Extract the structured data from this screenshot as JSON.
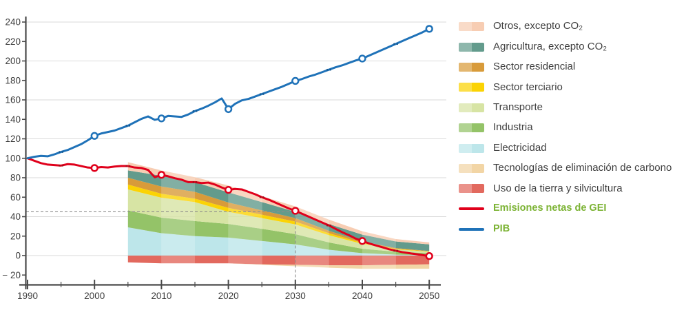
{
  "chart_data": {
    "type": "area",
    "title": "",
    "xlabel": "",
    "ylabel": "",
    "x_range": [
      1990,
      2050
    ],
    "ylim": [
      -20,
      240
    ],
    "grid": "horizontal, every 40 units",
    "legend_position": "right",
    "x_tick_labels": [
      "1990",
      "2000",
      "2010",
      "2020",
      "2030",
      "2040",
      "2050"
    ],
    "x_minor_ticks": [
      1995,
      2005,
      2015,
      2025,
      2035,
      2045
    ],
    "y_ticks": [
      {
        "v": 240,
        "label": "240"
      },
      {
        "v": 220,
        "label": "220"
      },
      {
        "v": 200,
        "label": "200"
      },
      {
        "v": 180,
        "label": "180"
      },
      {
        "v": 160,
        "label": "160"
      },
      {
        "v": 140,
        "label": "140"
      },
      {
        "v": 120,
        "label": "120"
      },
      {
        "v": 100,
        "label": "100"
      },
      {
        "v": 80,
        "label": "80"
      },
      {
        "v": 60,
        "label": "60"
      },
      {
        "v": 40,
        "label": "40"
      },
      {
        "v": 20,
        "label": "20"
      },
      {
        "v": 0,
        "label": "0"
      },
      {
        "v": -20,
        "label": "− 20"
      }
    ],
    "y_gridlines": [
      0,
      40,
      80,
      120,
      160,
      200,
      240
    ],
    "annotations": {
      "dashed_target_value": 45,
      "dashed_target_year": 2030
    },
    "index_base": "1990 = 100",
    "line_years_start": 1990,
    "series": [
      {
        "name": "PIB",
        "color": "#1f72b8",
        "dot_color": "#12568f",
        "marker_years": [
          2000,
          2010,
          2020,
          2030,
          2040,
          2050
        ],
        "dot_years": [
          1995,
          2005,
          2015,
          2025,
          2035,
          2045
        ],
        "values": [
          100,
          101.5,
          102.5,
          102,
          104,
          106.5,
          108.5,
          111.5,
          114.5,
          118.5,
          123,
          125.5,
          127,
          128.5,
          131,
          133.5,
          137,
          140.5,
          143,
          139.5,
          141,
          143.5,
          143,
          142.5,
          145,
          148.5,
          151,
          154,
          157.5,
          161.5,
          150.5,
          156,
          159.5,
          161,
          163.5,
          166,
          168.5,
          171,
          173.5,
          176.5,
          179.5,
          181.5,
          184,
          186,
          188.5,
          191,
          193.5,
          195.5,
          198,
          200.5,
          202.5,
          205.5,
          208.5,
          211.5,
          214.5,
          217.5,
          220.5,
          223.5,
          226.5,
          229.5,
          233
        ]
      },
      {
        "name": "Emisiones netas de GEI",
        "color": "#e0001b",
        "dot_color": "#9e0f18",
        "marker_years": [
          2000,
          2010,
          2020,
          2030,
          2040,
          2050
        ],
        "dot_years": [
          1995,
          2005,
          2015,
          2025,
          2035,
          2045
        ],
        "values": [
          100,
          97.5,
          95,
          93.5,
          93,
          92.5,
          94,
          93.5,
          92,
          90.5,
          90,
          91,
          90.5,
          91.5,
          92,
          92,
          90.5,
          90,
          88,
          80.5,
          83,
          81.5,
          79.5,
          78,
          75.5,
          75.5,
          74.5,
          75,
          73,
          70,
          67.5,
          68.5,
          68,
          65.5,
          63,
          60,
          57.5,
          54.5,
          51.5,
          48.5,
          46,
          43,
          40,
          37,
          34,
          31,
          27.5,
          24,
          21,
          17.5,
          15,
          12.5,
          10.5,
          8.5,
          6.5,
          5,
          3.5,
          2.5,
          1.5,
          0.5,
          -0.5
        ]
      }
    ],
    "area_years": [
      2005,
      2010,
      2015,
      2020,
      2025,
      2030,
      2035,
      2040,
      2045,
      2050
    ],
    "area_series_bottom_to_top": [
      {
        "name": "Electricidad",
        "color": "#bde6ea",
        "values": [
          29,
          23,
          20,
          18.5,
          15,
          11.5,
          6,
          2.5,
          1,
          0.5
        ]
      },
      {
        "name": "Industria",
        "color": "#94c368",
        "values": [
          17.5,
          16,
          15.5,
          14,
          12.5,
          10.5,
          7.5,
          4.5,
          3,
          2
        ]
      },
      {
        "name": "Transporte",
        "color": "#d7e4a4",
        "values": [
          21.5,
          20.5,
          19.5,
          12.5,
          11,
          10,
          7.5,
          5,
          2.5,
          1.5
        ]
      },
      {
        "name": "Sector terciario",
        "color": "#fbd304",
        "values": [
          5,
          4,
          3.5,
          4,
          3.5,
          3,
          2,
          1,
          0.5,
          0.3
        ]
      },
      {
        "name": "Sector residencial",
        "color": "#d89b3a",
        "values": [
          7,
          7.5,
          7,
          5.5,
          4.5,
          3.5,
          2.5,
          1.5,
          0.7,
          0.4
        ]
      },
      {
        "name": "Agricultura, excepto CO₂",
        "color": "#639b8c",
        "values": [
          7.5,
          11,
          10,
          10.5,
          8.5,
          6.5,
          7,
          7,
          6.8,
          6.8
        ]
      },
      {
        "name": "Otros, excepto CO₂",
        "color": "#f7cdb3",
        "values": [
          8.5,
          5.5,
          5,
          7,
          6,
          5.5,
          4.5,
          3.5,
          2.5,
          2
        ]
      }
    ],
    "negative_area_series_top_to_bottom": [
      {
        "name": "Uso de la tierra y silvicultura",
        "color": "#e2695e",
        "values": [
          -7,
          -8,
          -8,
          -8,
          -9,
          -9.5,
          -10,
          -10,
          -9.5,
          -9
        ]
      },
      {
        "name": "Tecnologías de eliminación de carbono",
        "color": "#f2d5a5",
        "values": [
          0,
          0,
          0,
          0,
          -0.5,
          -1.5,
          -2.5,
          -3.5,
          -4,
          -4.5
        ]
      }
    ],
    "legend": {
      "items": [
        {
          "label": "Otros, excepto CO₂",
          "color": "#f7cdb3",
          "type": "area"
        },
        {
          "label": "Agricultura, excepto CO₂",
          "color": "#639b8c",
          "type": "area"
        },
        {
          "label": "Sector residencial",
          "color": "#d89b3a",
          "type": "area"
        },
        {
          "label": "Sector terciario",
          "color": "#fbd304",
          "type": "area"
        },
        {
          "label": "Transporte",
          "color": "#d7e4a4",
          "type": "area"
        },
        {
          "label": "Industria",
          "color": "#94c368",
          "type": "area"
        },
        {
          "label": "Electricidad",
          "color": "#bde6ea",
          "type": "area"
        },
        {
          "label": "Tecnologías de eliminación de carbono",
          "color": "#f2d5a5",
          "type": "area"
        },
        {
          "label": "Uso de la tierra y silvicultura",
          "color": "#e2695e",
          "type": "area"
        },
        {
          "label": "Emisiones netas de GEI",
          "color": "#e0001b",
          "type": "line"
        },
        {
          "label": "PIB",
          "color": "#1f72b8",
          "type": "line"
        }
      ]
    },
    "colors": {
      "grid": "#dadada",
      "axis": "#4a4a4a",
      "dashed_guide": "#8c8c8c",
      "legend_text": "#3f3f3f",
      "legend_text_green": "#7cb334"
    }
  }
}
